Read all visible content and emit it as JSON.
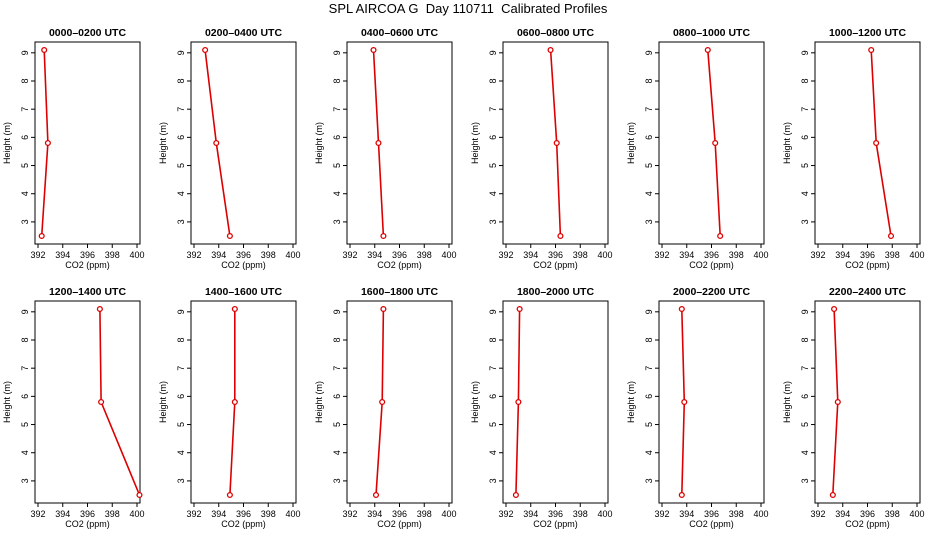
{
  "figure": {
    "title": "SPL AIRCOA G  Day 110711  Calibrated Profiles"
  },
  "colors": {
    "series": "#dd0000",
    "axis": "#000000",
    "background": "#ffffff"
  },
  "chart_data": [
    {
      "type": "line",
      "title": "0000–0200 UTC",
      "xlabel": "CO2 (ppm)",
      "ylabel": "Height (m)",
      "xlim": [
        392,
        400
      ],
      "ylim": [
        2.5,
        9.1
      ],
      "xticks": [
        392,
        394,
        396,
        398,
        400
      ],
      "yticks": [
        3,
        4,
        5,
        6,
        7,
        8,
        9
      ],
      "points": [
        {
          "x": 392.5,
          "y": 9.1
        },
        {
          "x": 392.8,
          "y": 5.8
        },
        {
          "x": 392.3,
          "y": 2.5
        }
      ],
      "marker": "circle"
    },
    {
      "type": "line",
      "title": "0200–0400 UTC",
      "xlabel": "CO2 (ppm)",
      "ylabel": "Height (m)",
      "xlim": [
        392,
        400
      ],
      "ylim": [
        2.5,
        9.1
      ],
      "xticks": [
        392,
        394,
        396,
        398,
        400
      ],
      "yticks": [
        3,
        4,
        5,
        6,
        7,
        8,
        9
      ],
      "points": [
        {
          "x": 392.9,
          "y": 9.1
        },
        {
          "x": 393.8,
          "y": 5.8
        },
        {
          "x": 394.9,
          "y": 2.5
        }
      ],
      "marker": "circle"
    },
    {
      "type": "line",
      "title": "0400–0600 UTC",
      "xlabel": "CO2 (ppm)",
      "ylabel": "Height (m)",
      "xlim": [
        392,
        400
      ],
      "ylim": [
        2.5,
        9.1
      ],
      "xticks": [
        392,
        394,
        396,
        398,
        400
      ],
      "yticks": [
        3,
        4,
        5,
        6,
        7,
        8,
        9
      ],
      "points": [
        {
          "x": 393.9,
          "y": 9.1
        },
        {
          "x": 394.3,
          "y": 5.8
        },
        {
          "x": 394.7,
          "y": 2.5
        }
      ],
      "marker": "circle"
    },
    {
      "type": "line",
      "title": "0600–0800 UTC",
      "xlabel": "CO2 (ppm)",
      "ylabel": "Height (m)",
      "xlim": [
        392,
        400
      ],
      "ylim": [
        2.5,
        9.1
      ],
      "xticks": [
        392,
        394,
        396,
        398,
        400
      ],
      "yticks": [
        3,
        4,
        5,
        6,
        7,
        8,
        9
      ],
      "points": [
        {
          "x": 395.6,
          "y": 9.1
        },
        {
          "x": 396.1,
          "y": 5.8
        },
        {
          "x": 396.4,
          "y": 2.5
        }
      ],
      "marker": "circle"
    },
    {
      "type": "line",
      "title": "0800–1000 UTC",
      "xlabel": "CO2 (ppm)",
      "ylabel": "Height (m)",
      "xlim": [
        392,
        400
      ],
      "ylim": [
        2.5,
        9.1
      ],
      "xticks": [
        392,
        394,
        396,
        398,
        400
      ],
      "yticks": [
        3,
        4,
        5,
        6,
        7,
        8,
        9
      ],
      "points": [
        {
          "x": 395.7,
          "y": 9.1
        },
        {
          "x": 396.3,
          "y": 5.8
        },
        {
          "x": 396.7,
          "y": 2.5
        }
      ],
      "marker": "circle"
    },
    {
      "type": "line",
      "title": "1000–1200 UTC",
      "xlabel": "CO2 (ppm)",
      "ylabel": "Height (m)",
      "xlim": [
        392,
        400
      ],
      "ylim": [
        2.5,
        9.1
      ],
      "xticks": [
        392,
        394,
        396,
        398,
        400
      ],
      "yticks": [
        3,
        4,
        5,
        6,
        7,
        8,
        9
      ],
      "points": [
        {
          "x": 396.3,
          "y": 9.1
        },
        {
          "x": 396.7,
          "y": 5.8
        },
        {
          "x": 397.9,
          "y": 2.5
        }
      ],
      "marker": "circle"
    },
    {
      "type": "line",
      "title": "1200–1400 UTC",
      "xlabel": "CO2 (ppm)",
      "ylabel": "Height (m)",
      "xlim": [
        392,
        400
      ],
      "ylim": [
        2.5,
        9.1
      ],
      "xticks": [
        392,
        394,
        396,
        398,
        400
      ],
      "yticks": [
        3,
        4,
        5,
        6,
        7,
        8,
        9
      ],
      "points": [
        {
          "x": 397.0,
          "y": 9.1
        },
        {
          "x": 397.1,
          "y": 5.8
        },
        {
          "x": 400.2,
          "y": 2.5
        }
      ],
      "marker": "circle"
    },
    {
      "type": "line",
      "title": "1400–1600 UTC",
      "xlabel": "CO2 (ppm)",
      "ylabel": "Height (m)",
      "xlim": [
        392,
        400
      ],
      "ylim": [
        2.5,
        9.1
      ],
      "xticks": [
        392,
        394,
        396,
        398,
        400
      ],
      "yticks": [
        3,
        4,
        5,
        6,
        7,
        8,
        9
      ],
      "points": [
        {
          "x": 395.3,
          "y": 9.1
        },
        {
          "x": 395.3,
          "y": 5.8
        },
        {
          "x": 394.9,
          "y": 2.5
        }
      ],
      "marker": "circle"
    },
    {
      "type": "line",
      "title": "1600–1800 UTC",
      "xlabel": "CO2 (ppm)",
      "ylabel": "Height (m)",
      "xlim": [
        392,
        400
      ],
      "ylim": [
        2.5,
        9.1
      ],
      "xticks": [
        392,
        394,
        396,
        398,
        400
      ],
      "yticks": [
        3,
        4,
        5,
        6,
        7,
        8,
        9
      ],
      "points": [
        {
          "x": 394.7,
          "y": 9.1
        },
        {
          "x": 394.6,
          "y": 5.8
        },
        {
          "x": 394.1,
          "y": 2.5
        }
      ],
      "marker": "circle"
    },
    {
      "type": "line",
      "title": "1800–2000 UTC",
      "xlabel": "CO2 (ppm)",
      "ylabel": "Height (m)",
      "xlim": [
        392,
        400
      ],
      "ylim": [
        2.5,
        9.1
      ],
      "xticks": [
        392,
        394,
        396,
        398,
        400
      ],
      "yticks": [
        3,
        4,
        5,
        6,
        7,
        8,
        9
      ],
      "points": [
        {
          "x": 393.1,
          "y": 9.1
        },
        {
          "x": 393.0,
          "y": 5.8
        },
        {
          "x": 392.8,
          "y": 2.5
        }
      ],
      "marker": "circle"
    },
    {
      "type": "line",
      "title": "2000–2200 UTC",
      "xlabel": "CO2 (ppm)",
      "ylabel": "Height (m)",
      "xlim": [
        392,
        400
      ],
      "ylim": [
        2.5,
        9.1
      ],
      "xticks": [
        392,
        394,
        396,
        398,
        400
      ],
      "yticks": [
        3,
        4,
        5,
        6,
        7,
        8,
        9
      ],
      "points": [
        {
          "x": 393.6,
          "y": 9.1
        },
        {
          "x": 393.8,
          "y": 5.8
        },
        {
          "x": 393.6,
          "y": 2.5
        }
      ],
      "marker": "circle"
    },
    {
      "type": "line",
      "title": "2200–2400 UTC",
      "xlabel": "CO2 (ppm)",
      "ylabel": "Height (m)",
      "xlim": [
        392,
        400
      ],
      "ylim": [
        2.5,
        9.1
      ],
      "xticks": [
        392,
        394,
        396,
        398,
        400
      ],
      "yticks": [
        3,
        4,
        5,
        6,
        7,
        8,
        9
      ],
      "points": [
        {
          "x": 393.3,
          "y": 9.1
        },
        {
          "x": 393.6,
          "y": 5.8
        },
        {
          "x": 393.2,
          "y": 2.5
        }
      ],
      "marker": "circle"
    }
  ]
}
